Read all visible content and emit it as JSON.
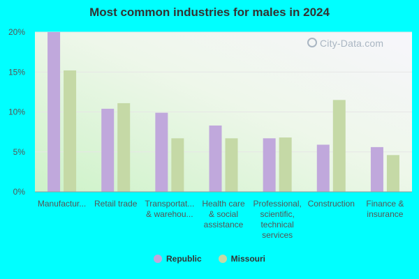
{
  "title": "Most common industries for males in 2024",
  "watermark": "City-Data.com",
  "colors": {
    "republic": "#c0a8dc",
    "missouri": "#c5d9a6",
    "background": "#00ffff"
  },
  "chart_data": {
    "type": "bar",
    "title": "Most common industries for males in 2024",
    "xlabel": "",
    "ylabel": "",
    "ylim": [
      0,
      20
    ],
    "yticks": [
      "0%",
      "5%",
      "10%",
      "15%",
      "20%"
    ],
    "categories": [
      [
        "Manufactur..."
      ],
      [
        "Retail trade"
      ],
      [
        "Transportat...",
        "& warehou..."
      ],
      [
        "Health care",
        "& social",
        "assistance"
      ],
      [
        "Professional,",
        "scientific,",
        "technical",
        "services"
      ],
      [
        "Construction"
      ],
      [
        "Finance &",
        "insurance"
      ]
    ],
    "series": [
      {
        "name": "Republic",
        "values": [
          20.0,
          10.4,
          9.9,
          8.3,
          6.7,
          5.9,
          5.6
        ]
      },
      {
        "name": "Missouri",
        "values": [
          15.2,
          11.1,
          6.7,
          6.7,
          6.8,
          11.5,
          4.6
        ]
      }
    ],
    "legend": "bottom",
    "grid": true
  }
}
